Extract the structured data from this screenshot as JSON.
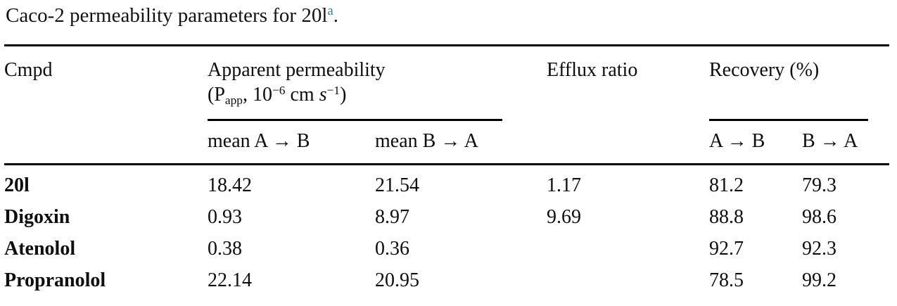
{
  "caption": {
    "text": "Caco-2 permeability parameters for 20l",
    "footnote_marker": "a",
    "suffix": "."
  },
  "colors": {
    "footnote_link_blue": "#2e7eb8",
    "text": "#0e0e0e",
    "rule": "#000000"
  },
  "table": {
    "headers": {
      "cmpd": "Cmpd",
      "apparent_permeability": {
        "line1": "Apparent permeability",
        "formula": {
          "open": "(P",
          "sub": "app",
          "comma10": ", 10",
          "sup_minus6": "−6",
          "cm": " cm ",
          "s_italic": "s",
          "sup_minus1": "−1",
          "close": ")"
        }
      },
      "efflux_ratio": "Efflux ratio",
      "recovery": "Recovery (%)",
      "sub": {
        "mean_a_to_b": "mean A → B",
        "mean_b_to_a": "mean B → A",
        "a_to_b": "A → B",
        "b_to_a": "B → A"
      }
    },
    "rows": [
      {
        "cmpd": "20l",
        "mean_ab": "18.42",
        "mean_ba": "21.54",
        "efflux": "1.17",
        "rec_ab": "81.2",
        "rec_ba": "79.3"
      },
      {
        "cmpd": "Digoxin",
        "mean_ab": "0.93",
        "mean_ba": "8.97",
        "efflux": "9.69",
        "rec_ab": "88.8",
        "rec_ba": "98.6"
      },
      {
        "cmpd": "Atenolol",
        "mean_ab": "0.38",
        "mean_ba": "0.36",
        "efflux": "",
        "rec_ab": "92.7",
        "rec_ba": "92.3"
      },
      {
        "cmpd": "Propranolol",
        "mean_ab": "22.14",
        "mean_ba": "20.95",
        "efflux": "",
        "rec_ab": "78.5",
        "rec_ba": "99.2"
      }
    ]
  }
}
